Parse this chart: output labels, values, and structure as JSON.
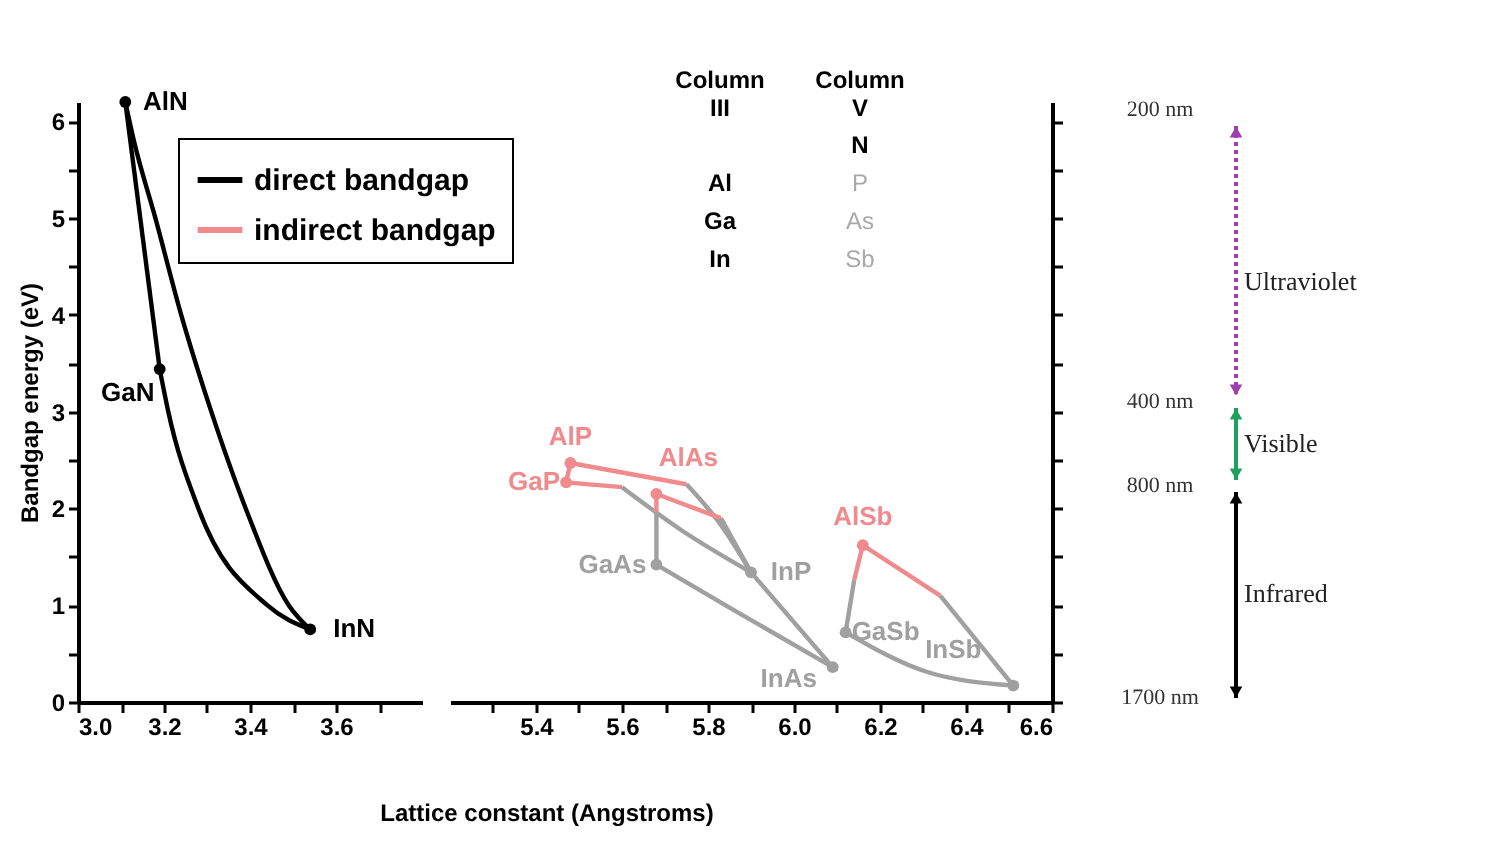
{
  "chart_data": [
    {
      "type": "line",
      "ylabel": "Bandgap energy (eV)",
      "xlim": [
        3.0,
        3.8
      ],
      "ylim": [
        0,
        6.2
      ],
      "xticks": [
        {
          "value": 3,
          "label": "3.0"
        },
        {
          "value": 3.1,
          "label": null
        },
        3.2,
        {
          "value": 3.3,
          "label": null
        },
        3.4,
        {
          "value": 3.5,
          "label": null
        },
        3.6,
        {
          "value": 3.7,
          "label": null
        }
      ],
      "yticks": [
        0,
        {
          "value": 0.5,
          "label": null
        },
        1,
        {
          "value": 1.5,
          "label": null
        },
        2,
        {
          "value": 2.5,
          "label": null
        },
        3,
        {
          "value": 3.5,
          "label": null
        },
        4,
        {
          "value": 4.5,
          "label": null
        },
        5,
        {
          "value": 5.5,
          "label": null
        },
        6
      ],
      "legend": "top right",
      "series": [
        {
          "name": "direct bandgap",
          "color": "#000000",
          "x": [
            3.11,
            3.13,
            3.18,
            3.24,
            3.31,
            3.39,
            3.49,
            3.54
          ],
          "values": [
            6.2,
            5.8,
            5.0,
            4.0,
            3.0,
            2.0,
            1.0,
            0.75
          ]
        },
        {
          "color": "#000000",
          "x": [
            3.11,
            3.19
          ],
          "values": [
            6.2,
            3.44
          ]
        },
        {
          "color": "#000000",
          "x": [
            3.19,
            3.21,
            3.28,
            3.44,
            3.54
          ],
          "values": [
            3.44,
            3.0,
            2.0,
            1.0,
            0.75
          ]
        },
        {
          "type": "scatter",
          "marker": "circle",
          "x": [
            3.11,
            3.19,
            3.54
          ],
          "values": [
            6.2,
            3.44,
            0.75
          ],
          "colors": [
            "#000000",
            "#000000",
            "#000000"
          ]
        }
      ],
      "annotations": [
        {
          "text": "AlN",
          "x": 3.11,
          "y": 6.2
        },
        {
          "text": "GaN",
          "x": 3.19,
          "y": 3.44
        },
        {
          "text": "InN",
          "x": 3.54,
          "y": 0.75
        }
      ]
    },
    {
      "type": "line",
      "xlabel": "Lattice constant (Angstroms)",
      "xlim": [
        5.2,
        6.6
      ],
      "ylim": [
        0,
        6.2
      ],
      "tick_labels": "x",
      "xticks": [
        {
          "value": 5.3,
          "label": null
        },
        5.4,
        {
          "value": 5.5,
          "label": null
        },
        5.6,
        {
          "value": 5.7,
          "label": null
        },
        5.8,
        {
          "value": 5.9,
          "label": null
        },
        {
          "value": 6,
          "label": "6.0"
        },
        {
          "value": 6.1,
          "label": null
        },
        6.2,
        {
          "value": 6.3,
          "label": null
        },
        6.4,
        {
          "value": 6.5,
          "label": null
        },
        6.6
      ],
      "yticks": [
        0,
        {
          "value": 0.5,
          "label": null
        },
        1,
        {
          "value": 1.5,
          "label": null
        },
        2,
        {
          "value": 2.5,
          "label": null
        },
        3,
        {
          "value": 3.5,
          "label": null
        },
        4,
        {
          "value": 4.5,
          "label": null
        },
        5,
        {
          "value": 5.5,
          "label": null
        },
        6
      ],
      "series": [
        {
          "name": "indirect bandgap",
          "color": "#f08a8c",
          "x": [
            5.48,
            5.75
          ],
          "values": [
            2.47,
            2.25
          ]
        },
        {
          "color": "#a0a0a0",
          "x": [
            5.75,
            5.83,
            5.9
          ],
          "values": [
            2.25,
            1.83,
            1.34
          ]
        },
        {
          "color": "#f08a8c",
          "x": [
            5.47,
            5.48
          ],
          "values": [
            2.27,
            2.47
          ]
        },
        {
          "color": "#f08a8c",
          "x": [
            5.47,
            5.6
          ],
          "values": [
            2.27,
            2.22
          ]
        },
        {
          "color": "#a0a0a0",
          "x": [
            5.6,
            5.74,
            5.9
          ],
          "values": [
            2.22,
            1.77,
            1.34
          ]
        },
        {
          "color": "#f08a8c",
          "x": [
            5.68,
            5.83
          ],
          "values": [
            2.15,
            1.9
          ]
        },
        {
          "color": "#a0a0a0",
          "x": [
            5.83,
            5.9
          ],
          "values": [
            1.9,
            1.34
          ]
        },
        {
          "color": "#f08a8c",
          "x": [
            5.68,
            5.68
          ],
          "values": [
            2.15,
            1.96
          ]
        },
        {
          "color": "#a0a0a0",
          "x": [
            5.68,
            5.68
          ],
          "values": [
            1.96,
            1.42
          ]
        },
        {
          "color": "#a0a0a0",
          "x": [
            5.68,
            5.86,
            6.09
          ],
          "values": [
            1.42,
            0.95,
            0.36
          ]
        },
        {
          "color": "#a0a0a0",
          "x": [
            5.9,
            6.09
          ],
          "values": [
            1.34,
            0.36
          ]
        },
        {
          "color": "#f08a8c",
          "x": [
            6.16,
            6.14
          ],
          "values": [
            1.62,
            1.26
          ]
        },
        {
          "color": "#a0a0a0",
          "x": [
            6.14,
            6.12
          ],
          "values": [
            1.26,
            0.72
          ]
        },
        {
          "color": "#f08a8c",
          "x": [
            6.16,
            6.34
          ],
          "values": [
            1.62,
            1.1
          ]
        },
        {
          "color": "#a0a0a0",
          "x": [
            6.34,
            6.51
          ],
          "values": [
            1.1,
            0.17
          ]
        },
        {
          "color": "#a0a0a0",
          "x": [
            6.12,
            6.31,
            6.51
          ],
          "values": [
            0.72,
            0.31,
            0.17
          ]
        },
        {
          "type": "scatter",
          "marker": "circle",
          "x": [
            5.48,
            5.47,
            5.68,
            5.9,
            5.68,
            6.09,
            6.16,
            6.12,
            6.51
          ],
          "values": [
            2.47,
            2.27,
            2.15,
            1.34,
            1.42,
            0.36,
            1.62,
            0.72,
            0.17
          ],
          "colors": [
            "#f08a8c",
            "#f08a8c",
            "#f08a8c",
            "#a0a0a0",
            "#a0a0a0",
            "#a0a0a0",
            "#f08a8c",
            "#a0a0a0",
            "#a0a0a0"
          ]
        }
      ],
      "annotations": [
        {
          "text": "AlP",
          "x": 5.48,
          "y": 2.47
        },
        {
          "text": "GaP",
          "x": 5.47,
          "y": 2.27
        },
        {
          "text": "AlAs",
          "x": 5.68,
          "y": 2.15
        },
        {
          "text": "InP",
          "x": 5.9,
          "y": 1.34
        },
        {
          "text": "GaAs",
          "x": 5.68,
          "y": 1.42
        },
        {
          "text": "InAs",
          "x": 6.09,
          "y": 0.36
        },
        {
          "text": "AlSb",
          "x": 6.16,
          "y": 1.62
        },
        {
          "text": "GaSb",
          "x": 6.12,
          "y": 0.72
        },
        {
          "text": "InSb",
          "x": 6.51,
          "y": 0.17
        },
        "Column III",
        "Column V",
        null,
        "N",
        "Al",
        "P",
        "Ga",
        "As",
        "In",
        "Sb"
      ]
    },
    {
      "type": "other",
      "annotations": [
        "200 nm",
        "400 nm",
        "800 nm",
        "1700 nm",
        "Ultraviolet",
        "Visible",
        "Infrared"
      ]
    }
  ]
}
